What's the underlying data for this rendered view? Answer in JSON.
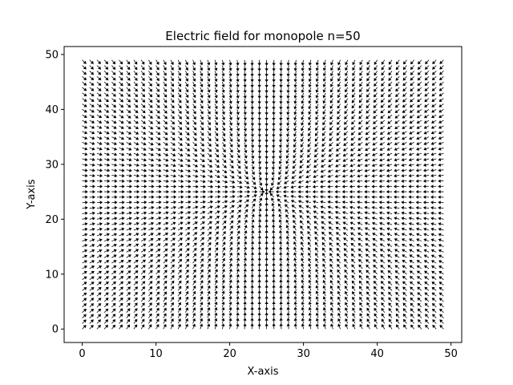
{
  "chart_data": {
    "type": "quiver",
    "title": "Electric field for monopole n=50",
    "xlabel": "X-axis",
    "ylabel": "Y-axis",
    "grid": false,
    "xlim": [
      -2.45,
      51.45
    ],
    "ylim": [
      -2.45,
      51.45
    ],
    "xticks": [
      0,
      10,
      20,
      30,
      40,
      50
    ],
    "yticks": [
      0,
      10,
      20,
      30,
      40,
      50
    ],
    "field": {
      "kind": "monopole",
      "n": 50,
      "grid_x": [
        0,
        49,
        1
      ],
      "grid_y": [
        0,
        49,
        1
      ],
      "charge_position": [
        25,
        25
      ],
      "vectors": "unit vectors pointing toward the charge"
    },
    "colors": {
      "arrow": "#000000",
      "axes": "#000000",
      "background": "#ffffff"
    }
  }
}
